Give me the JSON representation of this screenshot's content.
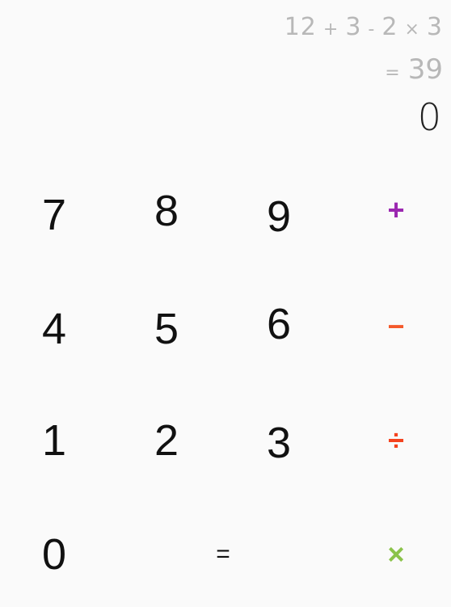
{
  "display": {
    "expression": {
      "t1": "12",
      "op1": "+",
      "t2": "3",
      "op2": "-",
      "t3": "2",
      "op3": "×",
      "t4": "3"
    },
    "result_prefix": "=",
    "result_value": "39",
    "current_input": "0"
  },
  "keypad": {
    "k7": "7",
    "k8": "8",
    "k9": "9",
    "plus": "+",
    "k4": "4",
    "k5": "5",
    "k6": "6",
    "minus": "−",
    "k1": "1",
    "k2": "2",
    "k3": "3",
    "divide": "÷",
    "k0": "0",
    "equals": "=",
    "multiply": "×"
  },
  "colors": {
    "plus": "#9b27b0",
    "minus": "#f4592b",
    "divide": "#f4431f",
    "multiply": "#8bc34a",
    "history": "#b8b8b8"
  }
}
